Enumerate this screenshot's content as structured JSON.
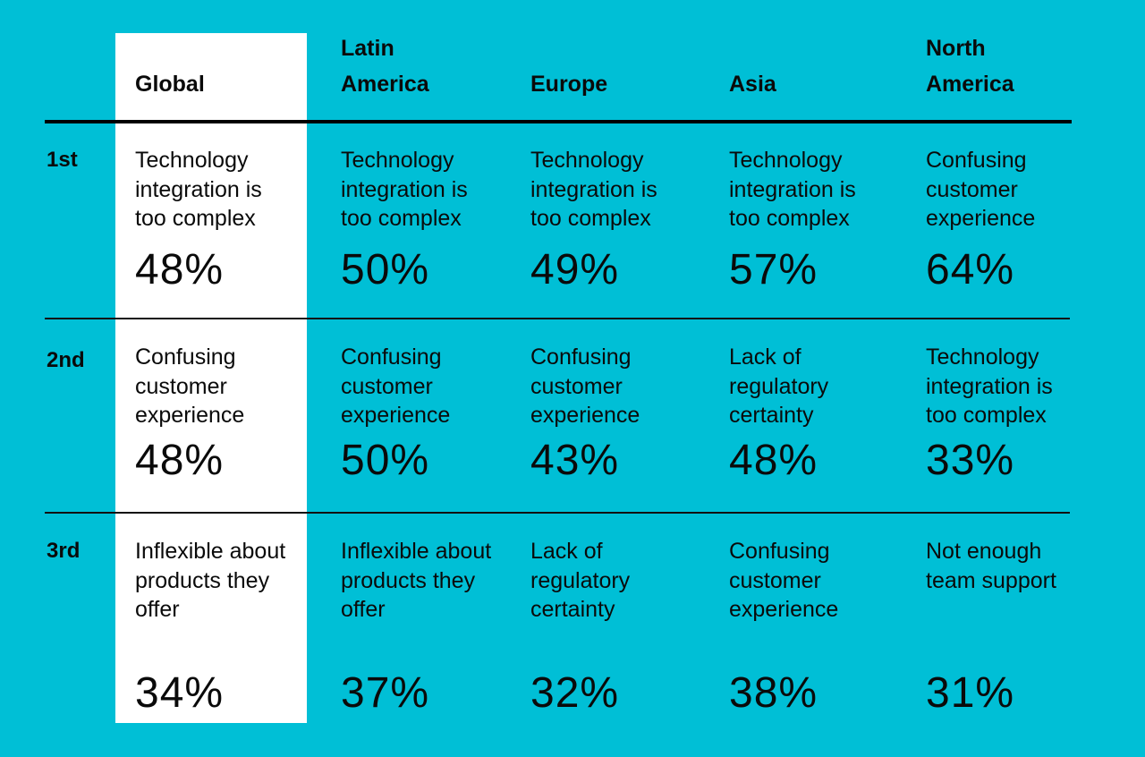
{
  "columns": [
    "Global",
    "Latin America",
    "Europe",
    "Asia",
    "North America"
  ],
  "rows": [
    {
      "rank": "1st",
      "cells": [
        {
          "text": "Technology integration is too complex",
          "pct": "48%"
        },
        {
          "text": "Technology integration is too complex",
          "pct": "50%"
        },
        {
          "text": "Technology integration is too complex",
          "pct": "49%"
        },
        {
          "text": "Technology integration is too complex",
          "pct": "57%"
        },
        {
          "text": "Confusing customer experience",
          "pct": "64%"
        }
      ]
    },
    {
      "rank": "2nd",
      "cells": [
        {
          "text": "Confusing customer experience",
          "pct": "48%"
        },
        {
          "text": "Confusing customer experience",
          "pct": "50%"
        },
        {
          "text": "Confusing customer experience",
          "pct": "43%"
        },
        {
          "text": "Lack of regulatory certainty",
          "pct": "48%"
        },
        {
          "text": "Technology integration is too complex",
          "pct": "33%"
        }
      ]
    },
    {
      "rank": "3rd",
      "cells": [
        {
          "text": "Inflexible about products they offer",
          "pct": "34%"
        },
        {
          "text": "Inflexible about products they offer",
          "pct": "37%"
        },
        {
          "text": "Lack of regulatory certainty",
          "pct": "32%"
        },
        {
          "text": "Confusing customer experience",
          "pct": "38%"
        },
        {
          "text": "Not enough team support",
          "pct": "31%"
        }
      ]
    }
  ],
  "colors": {
    "background": "#00BFD6",
    "highlight_column": "#FFFFFF",
    "text": "#0A0A0A"
  }
}
